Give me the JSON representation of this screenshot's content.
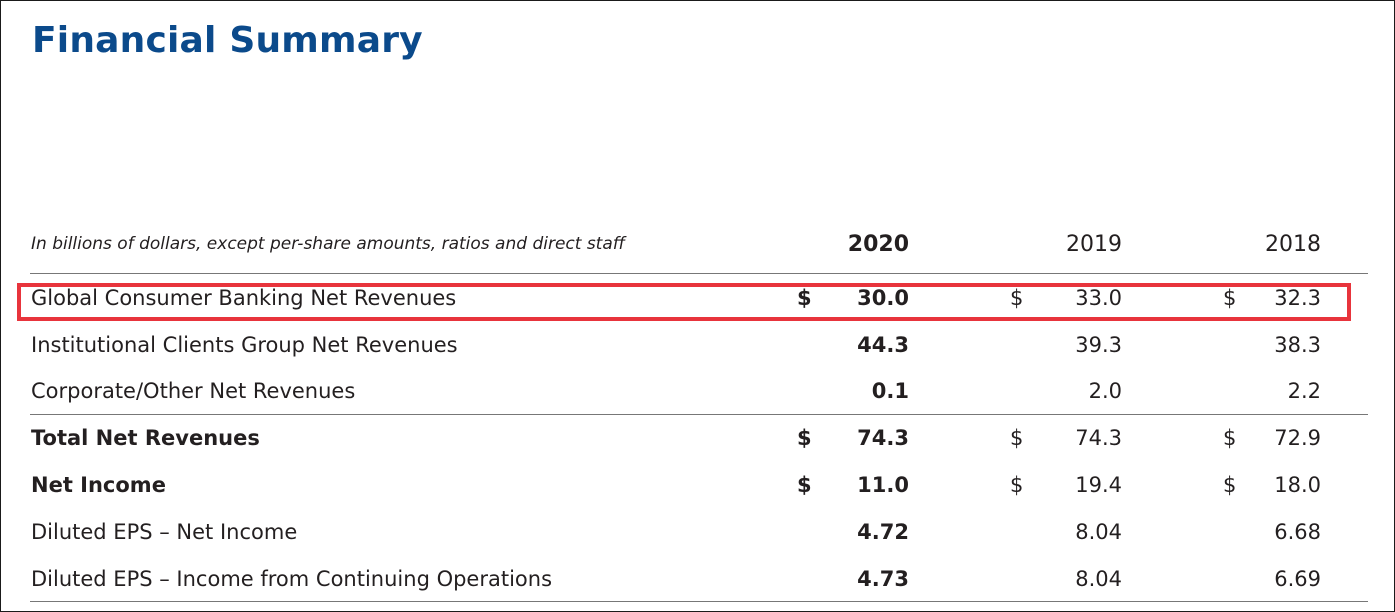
{
  "title": "Financial Summary",
  "subtitle": "In billions of dollars, except per-share amounts, ratios and direct staff",
  "columns": [
    "2020",
    "2019",
    "2018"
  ],
  "rows": [
    {
      "label": "Global Consumer Banking Net Revenues",
      "bold": false,
      "currency": "$",
      "values": [
        "30.0",
        "33.0",
        "32.3"
      ]
    },
    {
      "label": "Institutional Clients Group Net Revenues",
      "bold": false,
      "currency": "",
      "values": [
        "44.3",
        "39.3",
        "38.3"
      ]
    },
    {
      "label": "Corporate/Other Net Revenues",
      "bold": false,
      "currency": "",
      "values": [
        "0.1",
        "2.0",
        "2.2"
      ]
    },
    {
      "label": "Total Net Revenues",
      "bold": true,
      "currency": "$",
      "values": [
        "74.3",
        "74.3",
        "72.9"
      ]
    },
    {
      "label": "Net Income",
      "bold": true,
      "currency": "$",
      "values": [
        "11.0",
        "19.4",
        "18.0"
      ]
    },
    {
      "label": "Diluted EPS – Net Income",
      "bold": false,
      "currency": "",
      "values": [
        "4.72",
        "8.04",
        "6.68"
      ]
    },
    {
      "label": "Diluted EPS – Income from Continuing Operations",
      "bold": false,
      "currency": "",
      "values": [
        "4.73",
        "8.04",
        "6.69"
      ]
    }
  ],
  "colors": {
    "title": "#0b4a8b",
    "highlight": "#e8343c",
    "text": "#231f20"
  }
}
